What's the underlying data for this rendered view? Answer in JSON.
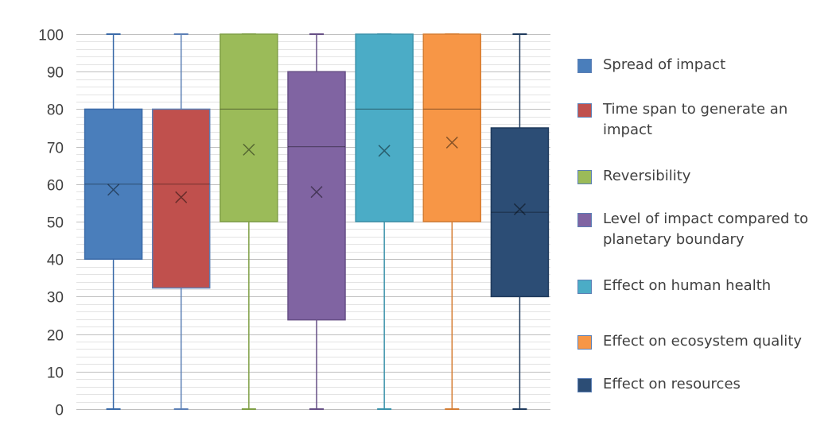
{
  "chart_data": {
    "type": "box",
    "y_ticks": [
      "0",
      "10",
      "20",
      "30",
      "40",
      "50",
      "60",
      "70",
      "80",
      "90",
      "100"
    ],
    "ylim": [
      0,
      100
    ],
    "y_major_step": 10,
    "y_minor_step": 2,
    "grid": true,
    "legend_position": "right",
    "series": [
      {
        "name": "Spread of impact",
        "color": "#4a7ebb",
        "border": "#3a6aa8",
        "min": 0,
        "q1": 40,
        "median": 60,
        "q3": 80,
        "max": 100,
        "mean": 58.5
      },
      {
        "name": "Time span to generate an impact",
        "color": "#c0504d",
        "border": "#5b7fb5",
        "min": 0,
        "q1": 32.3,
        "median": 60,
        "q3": 80,
        "max": 100,
        "mean": 56.5
      },
      {
        "name": "Reversibility",
        "color": "#9bbb59",
        "border": "#7f9f45",
        "min": 0,
        "q1": 50,
        "median": 80,
        "q3": 100,
        "max": 100,
        "mean": 69.2
      },
      {
        "name": "Level of impact compared to planetary boundary",
        "color": "#8064a2",
        "border": "#664f85",
        "min": 0,
        "q1": 23.8,
        "median": 70,
        "q3": 90,
        "max": 100,
        "mean": 57.9
      },
      {
        "name": "Effect on human health",
        "color": "#4bacc6",
        "border": "#3a92aa",
        "min": 0,
        "q1": 50,
        "median": 80,
        "q3": 100,
        "max": 100,
        "mean": 68.9
      },
      {
        "name": "Effect on ecosystem quality",
        "color": "#f79646",
        "border": "#d57d32",
        "min": 0,
        "q1": 50,
        "median": 80,
        "q3": 100,
        "max": 100,
        "mean": 71.1
      },
      {
        "name": "Effect on resources",
        "color": "#2c4d75",
        "border": "#1f3a5c",
        "min": 0,
        "q1": 30,
        "median": 52.5,
        "q3": 75,
        "max": 100,
        "mean": 53.3
      }
    ]
  }
}
